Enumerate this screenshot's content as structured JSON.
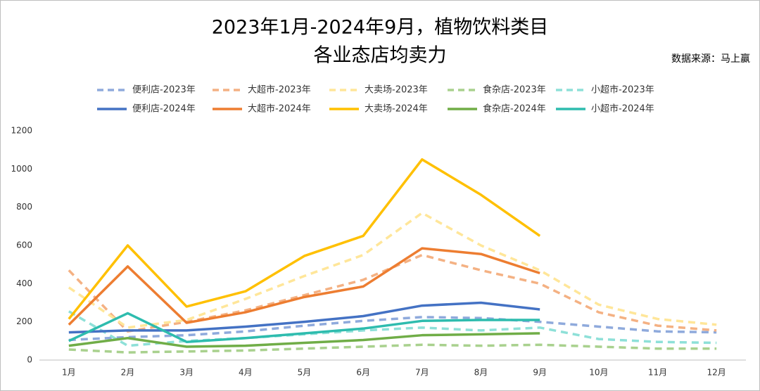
{
  "chart_data": {
    "type": "line",
    "title": [
      "2023年1月-2024年9月，植物饮料类目",
      "各业态店均卖力"
    ],
    "annotation": "数据来源：马上赢",
    "categories": [
      "1月",
      "2月",
      "3月",
      "4月",
      "5月",
      "6月",
      "7月",
      "8月",
      "9月",
      "10月",
      "11月",
      "12月"
    ],
    "ylim": [
      0,
      1200
    ],
    "yticks": [
      0,
      200,
      400,
      600,
      800,
      1000,
      1200
    ],
    "grid": false,
    "legend": "top",
    "series": [
      {
        "name": "便利店-2023年",
        "color": "#8faadc",
        "dashed": true,
        "values": [
          105,
          120,
          130,
          150,
          180,
          205,
          225,
          220,
          200,
          175,
          150,
          145
        ]
      },
      {
        "name": "大超市-2023年",
        "color": "#f4b183",
        "dashed": true,
        "values": [
          470,
          150,
          200,
          260,
          340,
          420,
          550,
          470,
          400,
          250,
          180,
          155
        ]
      },
      {
        "name": "大卖场-2023年",
        "color": "#ffe699",
        "dashed": true,
        "values": [
          380,
          170,
          210,
          320,
          440,
          550,
          770,
          600,
          470,
          290,
          215,
          185
        ]
      },
      {
        "name": "食杂店-2023年",
        "color": "#a9d18e",
        "dashed": true,
        "values": [
          55,
          40,
          45,
          50,
          60,
          70,
          80,
          75,
          80,
          70,
          60,
          60
        ]
      },
      {
        "name": "小超市-2023年",
        "color": "#8ee0d8",
        "dashed": true,
        "values": [
          255,
          75,
          100,
          115,
          135,
          155,
          170,
          155,
          170,
          110,
          95,
          90
        ]
      },
      {
        "name": "便利店-2024年",
        "color": "#4472c4",
        "dashed": false,
        "values": [
          145,
          155,
          155,
          175,
          200,
          230,
          285,
          300,
          265,
          null,
          null,
          null
        ]
      },
      {
        "name": "大超市-2024年",
        "color": "#ed7d31",
        "dashed": false,
        "values": [
          185,
          490,
          195,
          250,
          330,
          385,
          585,
          555,
          455,
          null,
          null,
          null
        ]
      },
      {
        "name": "大卖场-2024年",
        "color": "#ffc000",
        "dashed": false,
        "values": [
          215,
          600,
          280,
          360,
          545,
          650,
          1050,
          865,
          650,
          null,
          null,
          null
        ]
      },
      {
        "name": "食杂店-2024年",
        "color": "#70ad47",
        "dashed": false,
        "values": [
          75,
          115,
          70,
          75,
          90,
          105,
          130,
          135,
          140,
          null,
          null,
          null
        ]
      },
      {
        "name": "小超市-2024年",
        "color": "#2ebcae",
        "dashed": false,
        "values": [
          100,
          245,
          95,
          115,
          140,
          165,
          205,
          210,
          210,
          null,
          null,
          null
        ]
      }
    ]
  }
}
